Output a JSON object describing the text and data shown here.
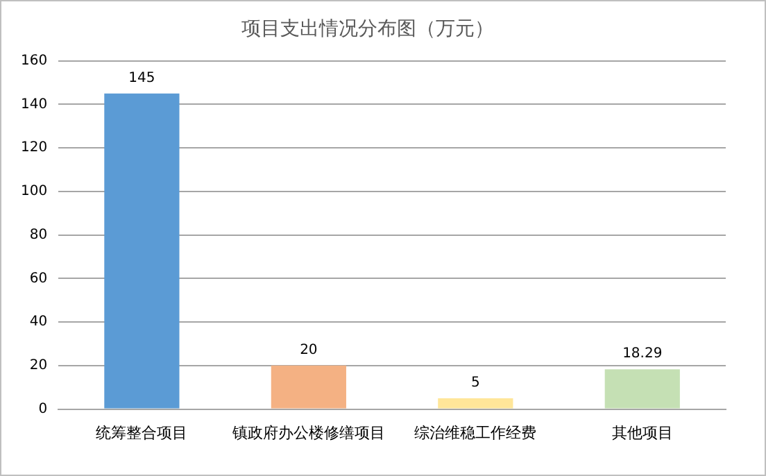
{
  "chart_data": {
    "type": "bar",
    "title": "项目支出情况分布图（万元）",
    "categories": [
      "统筹整合项目",
      "镇政府办公楼修缮项目",
      "综治维稳工作经费",
      "其他项目"
    ],
    "values": [
      145,
      20,
      5,
      18.29
    ],
    "colors": [
      "#5b9bd5",
      "#f4b183",
      "#ffe699",
      "#c5e0b4"
    ],
    "ylim": [
      0,
      160
    ],
    "yticks": [
      0,
      20,
      40,
      60,
      80,
      100,
      120,
      140,
      160
    ],
    "grid": "y",
    "data_labels": true
  }
}
